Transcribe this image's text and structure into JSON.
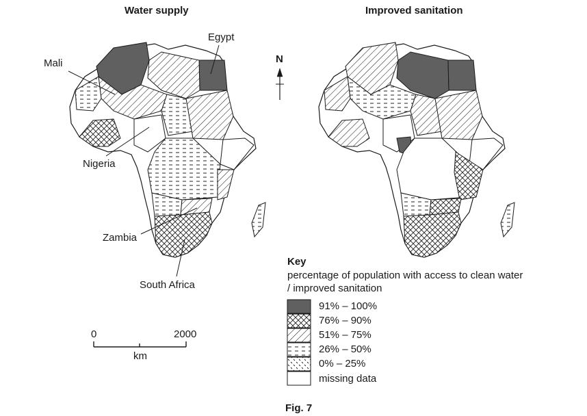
{
  "maps": {
    "left_title": "Water supply",
    "right_title": "Improved sanitation"
  },
  "labels": {
    "egypt": "Egypt",
    "mali": "Mali",
    "nigeria": "Nigeria",
    "zambia": "Zambia",
    "south_africa": "South Africa"
  },
  "north": "N",
  "scale": {
    "start": "0",
    "end": "2000",
    "unit": "km"
  },
  "key": {
    "heading": "Key",
    "line1": "percentage of population with access to clean water",
    "line2": "/ improved sanitation",
    "items": [
      {
        "label": "91% – 100%",
        "pattern": "solid-dark"
      },
      {
        "label": "76% – 90%",
        "pattern": "cross-hatch"
      },
      {
        "label": "51% – 75%",
        "pattern": "diagonal-lines"
      },
      {
        "label": "26% – 50%",
        "pattern": "dashed-horizontal"
      },
      {
        "label": "0% – 25%",
        "pattern": "sparse-dots"
      },
      {
        "label": "missing data",
        "pattern": "blank"
      }
    ]
  },
  "figure": "Fig. 7",
  "colors": {
    "dark_fill": "#606060",
    "line": "#1a1a1a"
  }
}
